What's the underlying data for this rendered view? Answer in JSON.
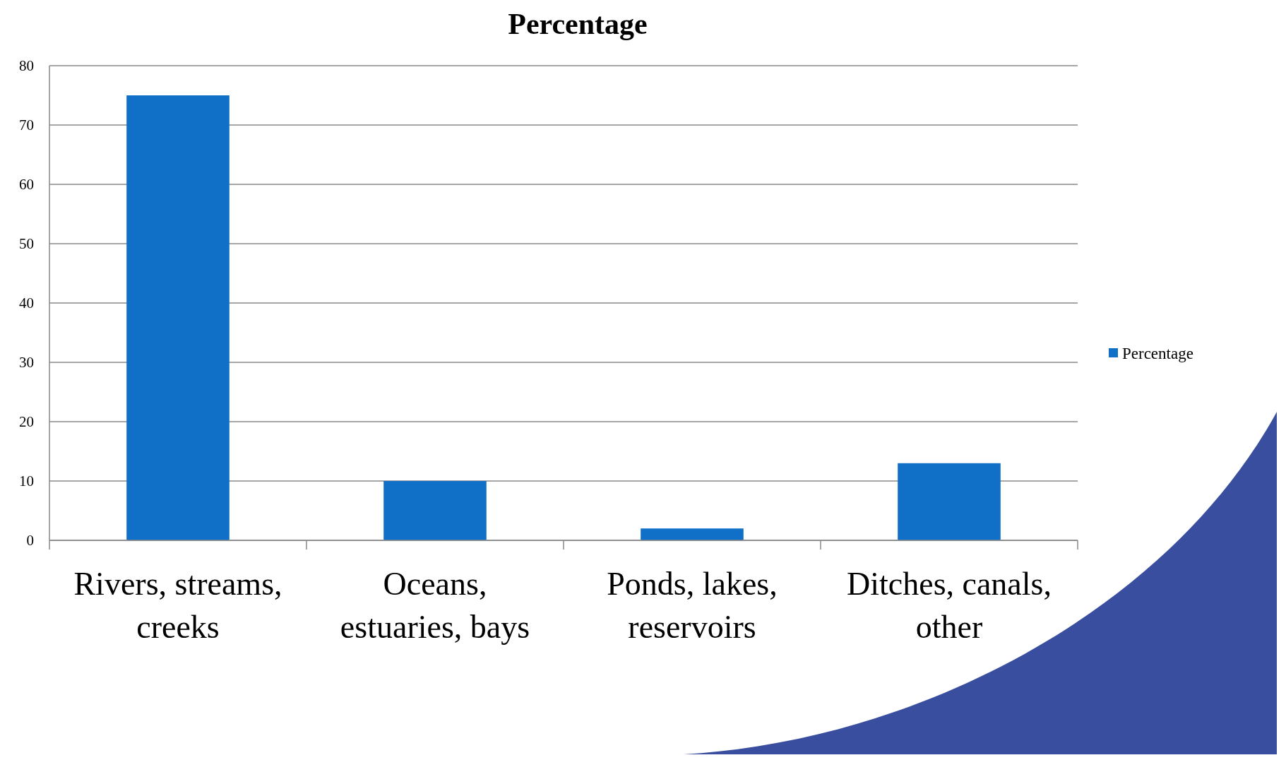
{
  "chart_data": {
    "type": "bar",
    "title": "Percentage",
    "categories": [
      "Rivers, streams, creeks",
      "Oceans, estuaries, bays",
      "Ponds, lakes, reservoirs",
      "Ditches, canals, other"
    ],
    "series": [
      {
        "name": "Percentage",
        "color": "#1070c8",
        "values": [
          75,
          10,
          2,
          13
        ]
      }
    ],
    "ylim": [
      0,
      80
    ],
    "yticks": [
      0,
      10,
      20,
      30,
      40,
      50,
      60,
      70,
      80
    ],
    "grid": "y",
    "legend": "right"
  }
}
